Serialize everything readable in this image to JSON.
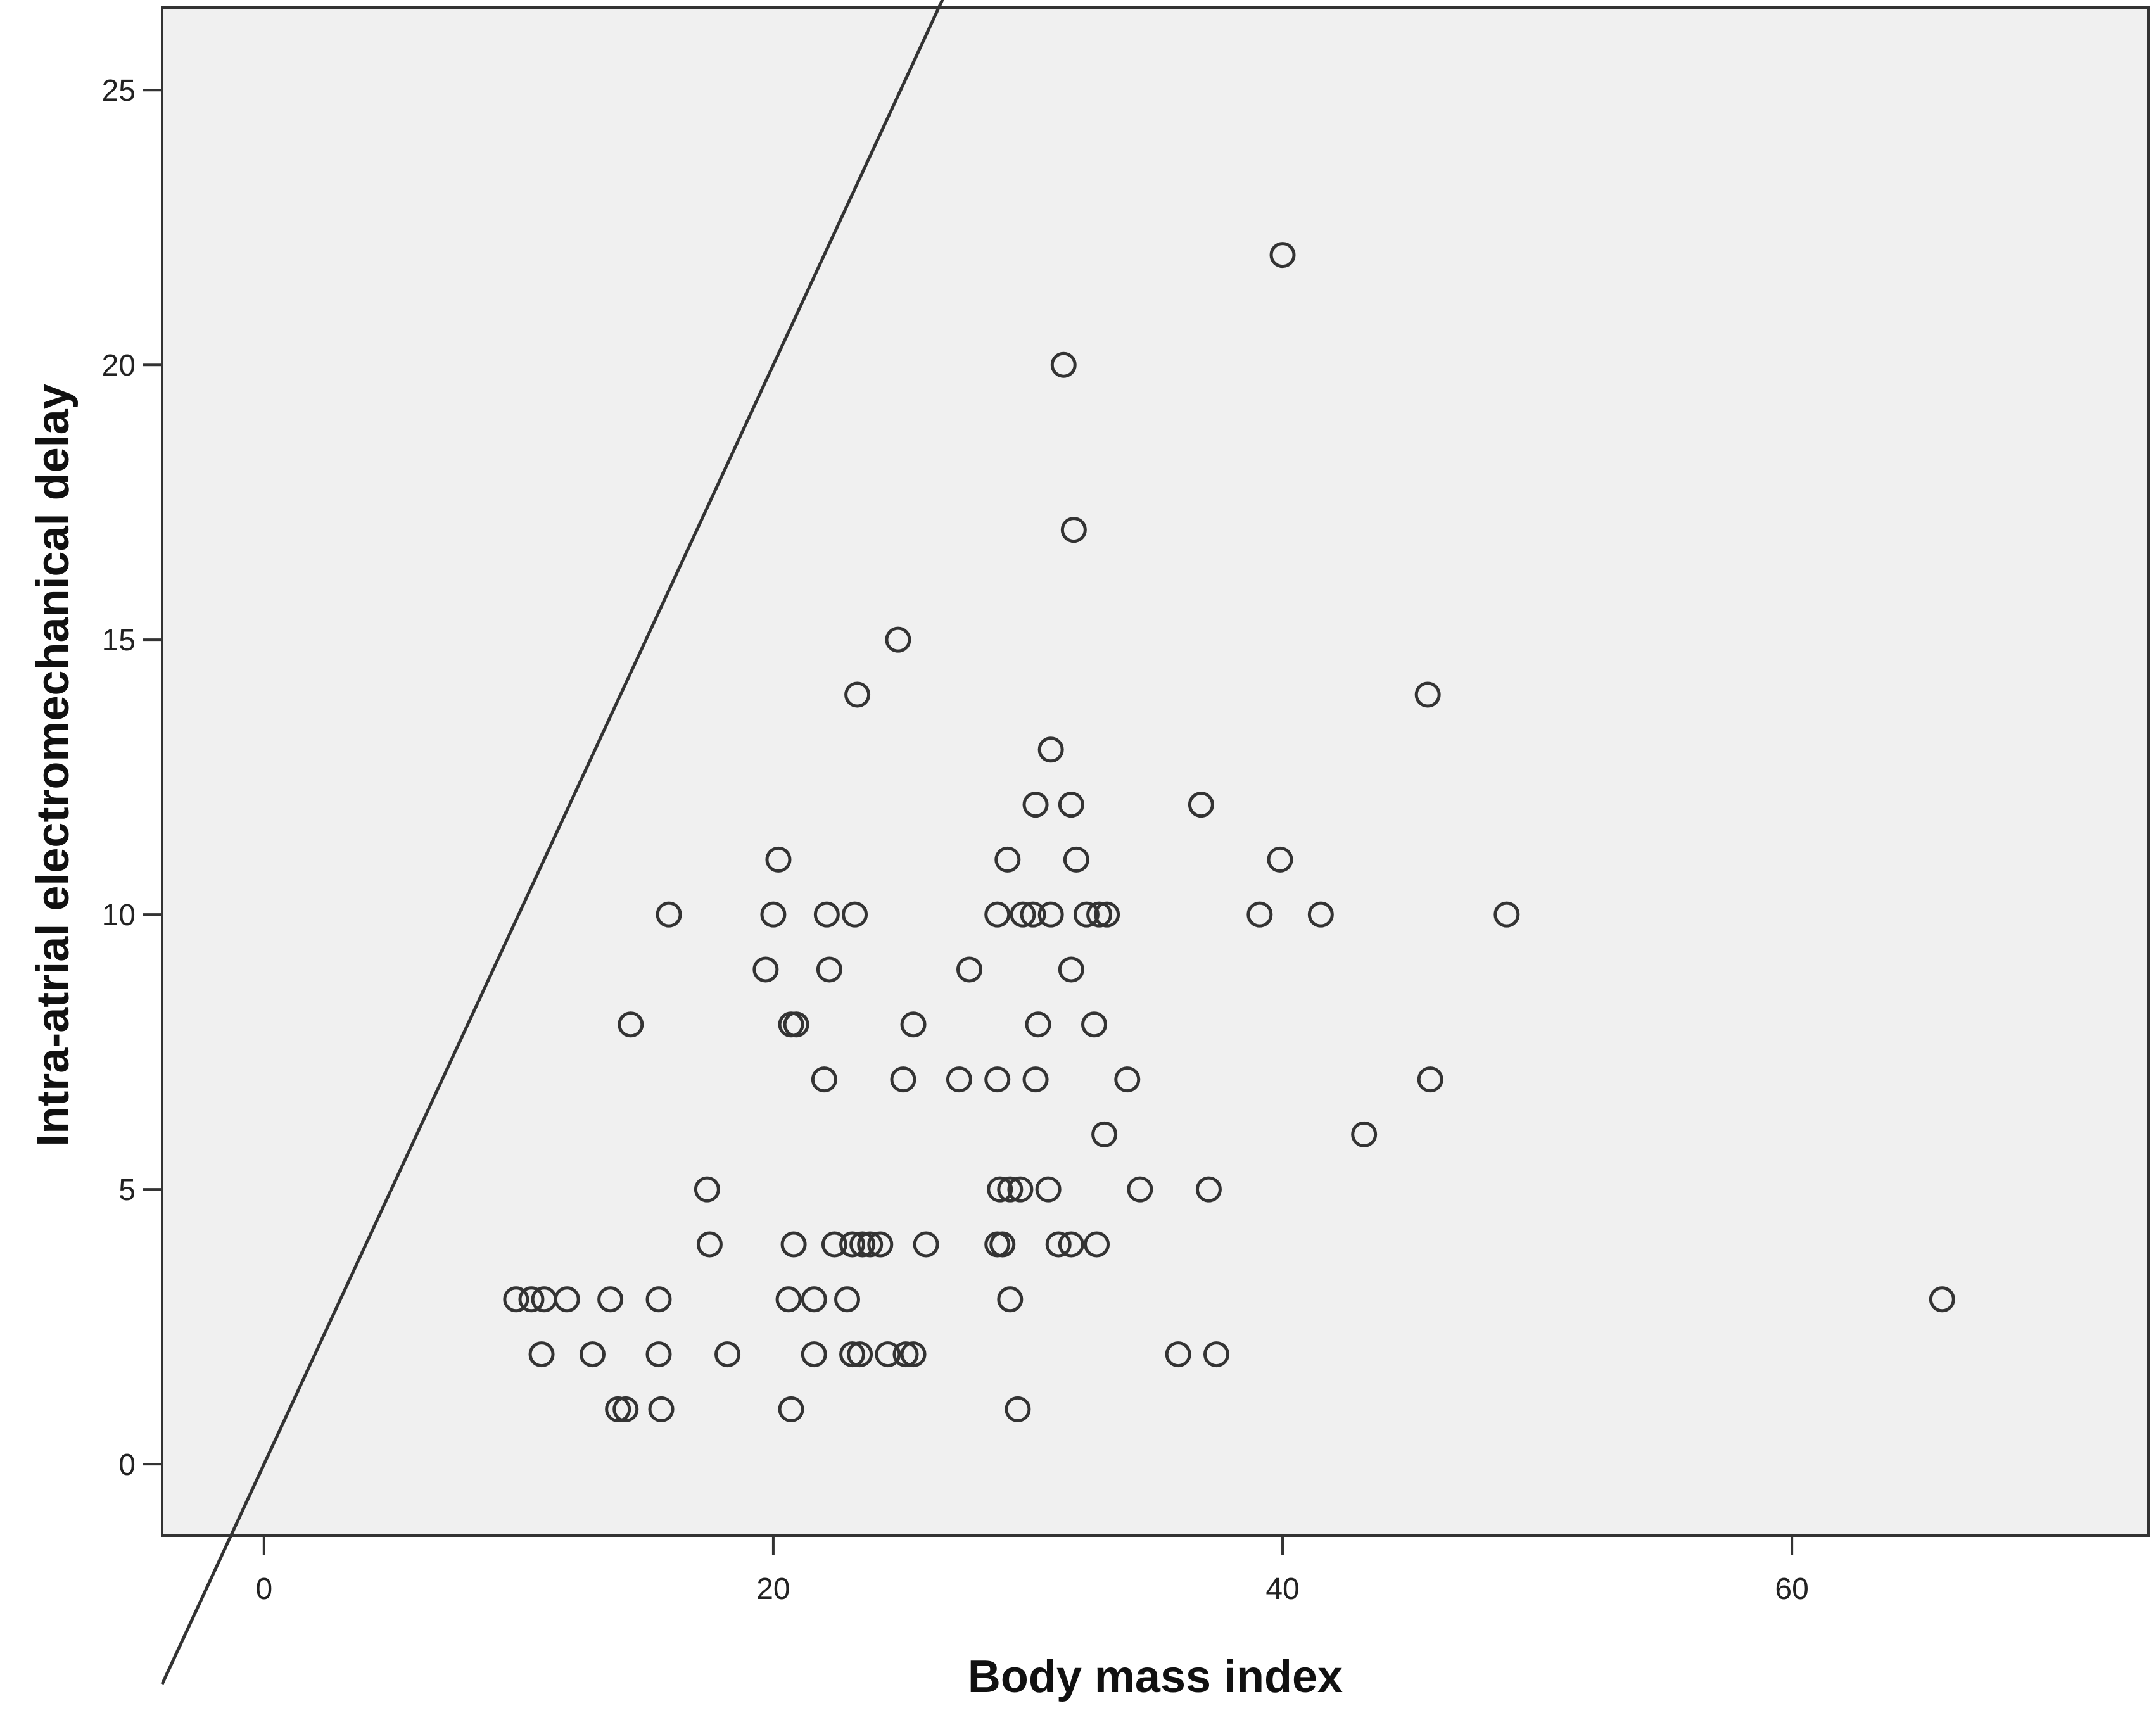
{
  "chart_data": {
    "type": "scatter",
    "xlabel": "Body mass index",
    "ylabel": "Intra-atrial electromechanical delay",
    "xlim": [
      -4,
      74
    ],
    "ylim": [
      -1.3,
      26.5
    ],
    "xticks": [
      0,
      20,
      40,
      60
    ],
    "yticks": [
      0,
      5,
      10,
      15,
      20,
      25
    ],
    "grid": false,
    "reference_line": [
      [
        -4,
        -4
      ],
      [
        74,
        74
      ]
    ],
    "colors": {
      "plot_background": "#f0f0f0",
      "marker": "#333333",
      "line": "#333333"
    },
    "points": [
      {
        "x": 40.0,
        "y": 22
      },
      {
        "x": 31.4,
        "y": 20
      },
      {
        "x": 31.8,
        "y": 17
      },
      {
        "x": 24.9,
        "y": 15
      },
      {
        "x": 23.3,
        "y": 14
      },
      {
        "x": 45.7,
        "y": 14
      },
      {
        "x": 30.9,
        "y": 13
      },
      {
        "x": 30.3,
        "y": 12
      },
      {
        "x": 31.7,
        "y": 12
      },
      {
        "x": 36.8,
        "y": 12
      },
      {
        "x": 20.2,
        "y": 11
      },
      {
        "x": 29.2,
        "y": 11
      },
      {
        "x": 31.9,
        "y": 11
      },
      {
        "x": 39.9,
        "y": 11
      },
      {
        "x": 15.9,
        "y": 10
      },
      {
        "x": 20.0,
        "y": 10
      },
      {
        "x": 22.1,
        "y": 10
      },
      {
        "x": 23.2,
        "y": 10
      },
      {
        "x": 28.8,
        "y": 10
      },
      {
        "x": 29.8,
        "y": 10
      },
      {
        "x": 30.2,
        "y": 10
      },
      {
        "x": 30.9,
        "y": 10
      },
      {
        "x": 32.3,
        "y": 10
      },
      {
        "x": 32.8,
        "y": 10
      },
      {
        "x": 33.1,
        "y": 10
      },
      {
        "x": 39.1,
        "y": 10
      },
      {
        "x": 41.5,
        "y": 10
      },
      {
        "x": 48.8,
        "y": 10
      },
      {
        "x": 19.7,
        "y": 9
      },
      {
        "x": 22.2,
        "y": 9
      },
      {
        "x": 27.7,
        "y": 9
      },
      {
        "x": 31.7,
        "y": 9
      },
      {
        "x": 14.4,
        "y": 8
      },
      {
        "x": 20.7,
        "y": 8
      },
      {
        "x": 20.9,
        "y": 8
      },
      {
        "x": 25.5,
        "y": 8
      },
      {
        "x": 30.4,
        "y": 8
      },
      {
        "x": 32.6,
        "y": 8
      },
      {
        "x": 22.0,
        "y": 7
      },
      {
        "x": 25.1,
        "y": 7
      },
      {
        "x": 27.3,
        "y": 7
      },
      {
        "x": 28.8,
        "y": 7
      },
      {
        "x": 30.3,
        "y": 7
      },
      {
        "x": 33.9,
        "y": 7
      },
      {
        "x": 45.8,
        "y": 7
      },
      {
        "x": 33.0,
        "y": 6
      },
      {
        "x": 43.2,
        "y": 6
      },
      {
        "x": 17.4,
        "y": 5
      },
      {
        "x": 28.9,
        "y": 5
      },
      {
        "x": 29.3,
        "y": 5
      },
      {
        "x": 29.7,
        "y": 5
      },
      {
        "x": 30.8,
        "y": 5
      },
      {
        "x": 34.4,
        "y": 5
      },
      {
        "x": 37.1,
        "y": 5
      },
      {
        "x": 17.5,
        "y": 4
      },
      {
        "x": 20.8,
        "y": 4
      },
      {
        "x": 22.4,
        "y": 4
      },
      {
        "x": 23.1,
        "y": 4
      },
      {
        "x": 23.5,
        "y": 4
      },
      {
        "x": 23.8,
        "y": 4
      },
      {
        "x": 24.2,
        "y": 4
      },
      {
        "x": 26.0,
        "y": 4
      },
      {
        "x": 28.8,
        "y": 4
      },
      {
        "x": 29.0,
        "y": 4
      },
      {
        "x": 31.2,
        "y": 4
      },
      {
        "x": 31.7,
        "y": 4
      },
      {
        "x": 32.7,
        "y": 4
      },
      {
        "x": 9.9,
        "y": 3
      },
      {
        "x": 10.5,
        "y": 3
      },
      {
        "x": 11.0,
        "y": 3
      },
      {
        "x": 11.9,
        "y": 3
      },
      {
        "x": 13.6,
        "y": 3
      },
      {
        "x": 15.5,
        "y": 3
      },
      {
        "x": 20.6,
        "y": 3
      },
      {
        "x": 21.6,
        "y": 3
      },
      {
        "x": 22.9,
        "y": 3
      },
      {
        "x": 29.3,
        "y": 3
      },
      {
        "x": 65.9,
        "y": 3
      },
      {
        "x": 10.9,
        "y": 2
      },
      {
        "x": 12.9,
        "y": 2
      },
      {
        "x": 15.5,
        "y": 2
      },
      {
        "x": 18.2,
        "y": 2
      },
      {
        "x": 21.6,
        "y": 2
      },
      {
        "x": 23.1,
        "y": 2
      },
      {
        "x": 23.4,
        "y": 2
      },
      {
        "x": 24.5,
        "y": 2
      },
      {
        "x": 25.2,
        "y": 2
      },
      {
        "x": 25.5,
        "y": 2
      },
      {
        "x": 35.9,
        "y": 2
      },
      {
        "x": 37.4,
        "y": 2
      },
      {
        "x": 13.9,
        "y": 1
      },
      {
        "x": 14.2,
        "y": 1
      },
      {
        "x": 15.6,
        "y": 1
      },
      {
        "x": 20.7,
        "y": 1
      },
      {
        "x": 29.6,
        "y": 1
      }
    ]
  }
}
